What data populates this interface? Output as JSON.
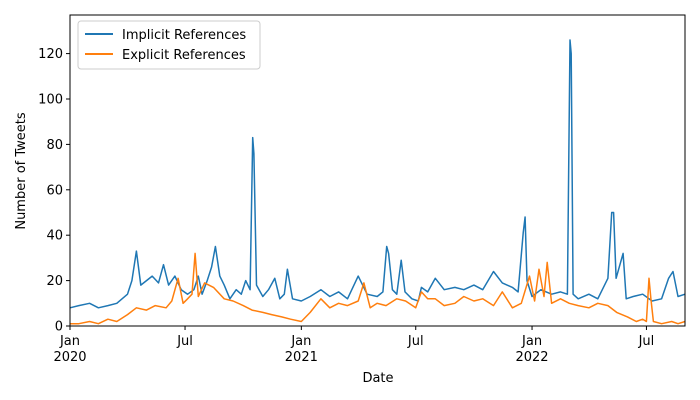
{
  "chart_data": {
    "type": "line",
    "title": "",
    "xlabel": "Date",
    "ylabel": "Number of Tweets",
    "x_range": [
      "2020-01-01",
      "2022-08-31"
    ],
    "ylim": [
      0,
      137
    ],
    "grid": false,
    "legend_position": "top-left",
    "x_ticks": [
      {
        "date": "2020-01-01",
        "label": "Jan",
        "sublabel": "2020"
      },
      {
        "date": "2020-07-01",
        "label": "Jul",
        "sublabel": ""
      },
      {
        "date": "2021-01-01",
        "label": "Jan",
        "sublabel": "2021"
      },
      {
        "date": "2021-07-01",
        "label": "Jul",
        "sublabel": ""
      },
      {
        "date": "2022-01-01",
        "label": "Jan",
        "sublabel": "2022"
      },
      {
        "date": "2022-07-01",
        "label": "Jul",
        "sublabel": ""
      }
    ],
    "y_ticks": [
      0,
      20,
      40,
      60,
      80,
      100,
      120
    ],
    "series": [
      {
        "name": "Implicit References",
        "color": "#1f77b4",
        "points": [
          [
            "2020-01-01",
            8
          ],
          [
            "2020-01-15",
            9
          ],
          [
            "2020-02-01",
            10
          ],
          [
            "2020-02-15",
            8
          ],
          [
            "2020-03-01",
            9
          ],
          [
            "2020-03-15",
            10
          ],
          [
            "2020-04-01",
            14
          ],
          [
            "2020-04-08",
            20
          ],
          [
            "2020-04-15",
            33
          ],
          [
            "2020-04-22",
            18
          ],
          [
            "2020-05-01",
            20
          ],
          [
            "2020-05-10",
            22
          ],
          [
            "2020-05-20",
            19
          ],
          [
            "2020-05-28",
            27
          ],
          [
            "2020-06-05",
            18
          ],
          [
            "2020-06-15",
            22
          ],
          [
            "2020-06-25",
            16
          ],
          [
            "2020-07-05",
            14
          ],
          [
            "2020-07-15",
            16
          ],
          [
            "2020-07-22",
            22
          ],
          [
            "2020-07-28",
            14
          ],
          [
            "2020-08-05",
            20
          ],
          [
            "2020-08-12",
            26
          ],
          [
            "2020-08-18",
            35
          ],
          [
            "2020-08-25",
            22
          ],
          [
            "2020-09-01",
            18
          ],
          [
            "2020-09-10",
            12
          ],
          [
            "2020-09-20",
            16
          ],
          [
            "2020-09-28",
            14
          ],
          [
            "2020-10-05",
            20
          ],
          [
            "2020-10-12",
            16
          ],
          [
            "2020-10-16",
            83
          ],
          [
            "2020-10-18",
            76
          ],
          [
            "2020-10-22",
            18
          ],
          [
            "2020-11-01",
            13
          ],
          [
            "2020-11-10",
            16
          ],
          [
            "2020-11-20",
            21
          ],
          [
            "2020-11-28",
            12
          ],
          [
            "2020-12-05",
            14
          ],
          [
            "2020-12-10",
            25
          ],
          [
            "2020-12-18",
            12
          ],
          [
            "2021-01-01",
            11
          ],
          [
            "2021-01-15",
            13
          ],
          [
            "2021-02-01",
            16
          ],
          [
            "2021-02-15",
            13
          ],
          [
            "2021-03-01",
            15
          ],
          [
            "2021-03-15",
            12
          ],
          [
            "2021-04-01",
            22
          ],
          [
            "2021-04-15",
            14
          ],
          [
            "2021-05-01",
            13
          ],
          [
            "2021-05-10",
            15
          ],
          [
            "2021-05-16",
            35
          ],
          [
            "2021-05-19",
            32
          ],
          [
            "2021-05-25",
            16
          ],
          [
            "2021-06-01",
            14
          ],
          [
            "2021-06-08",
            29
          ],
          [
            "2021-06-14",
            15
          ],
          [
            "2021-06-25",
            12
          ],
          [
            "2021-07-05",
            11
          ],
          [
            "2021-07-10",
            17
          ],
          [
            "2021-07-20",
            15
          ],
          [
            "2021-08-01",
            21
          ],
          [
            "2021-08-15",
            16
          ],
          [
            "2021-09-01",
            17
          ],
          [
            "2021-09-15",
            16
          ],
          [
            "2021-10-01",
            18
          ],
          [
            "2021-10-15",
            16
          ],
          [
            "2021-11-01",
            24
          ],
          [
            "2021-11-15",
            19
          ],
          [
            "2021-12-01",
            17
          ],
          [
            "2021-12-10",
            15
          ],
          [
            "2021-12-18",
            41
          ],
          [
            "2021-12-21",
            48
          ],
          [
            "2021-12-24",
            20
          ],
          [
            "2022-01-01",
            13
          ],
          [
            "2022-01-15",
            16
          ],
          [
            "2022-02-01",
            14
          ],
          [
            "2022-02-15",
            15
          ],
          [
            "2022-02-26",
            14
          ],
          [
            "2022-03-02",
            126
          ],
          [
            "2022-03-04",
            120
          ],
          [
            "2022-03-07",
            14
          ],
          [
            "2022-03-15",
            12
          ],
          [
            "2022-04-01",
            14
          ],
          [
            "2022-04-15",
            12
          ],
          [
            "2022-05-01",
            21
          ],
          [
            "2022-05-07",
            50
          ],
          [
            "2022-05-10",
            50
          ],
          [
            "2022-05-14",
            21
          ],
          [
            "2022-05-25",
            32
          ],
          [
            "2022-05-30",
            12
          ],
          [
            "2022-06-10",
            13
          ],
          [
            "2022-06-25",
            14
          ],
          [
            "2022-07-10",
            11
          ],
          [
            "2022-07-25",
            12
          ],
          [
            "2022-08-05",
            21
          ],
          [
            "2022-08-12",
            24
          ],
          [
            "2022-08-20",
            13
          ],
          [
            "2022-08-31",
            14
          ]
        ]
      },
      {
        "name": "Explicit References",
        "color": "#ff7f0e",
        "points": [
          [
            "2020-01-01",
            1
          ],
          [
            "2020-01-15",
            1
          ],
          [
            "2020-02-01",
            2
          ],
          [
            "2020-02-15",
            1
          ],
          [
            "2020-03-01",
            3
          ],
          [
            "2020-03-15",
            2
          ],
          [
            "2020-04-01",
            5
          ],
          [
            "2020-04-15",
            8
          ],
          [
            "2020-05-01",
            7
          ],
          [
            "2020-05-15",
            9
          ],
          [
            "2020-06-01",
            8
          ],
          [
            "2020-06-10",
            11
          ],
          [
            "2020-06-20",
            21
          ],
          [
            "2020-06-28",
            10
          ],
          [
            "2020-07-05",
            12
          ],
          [
            "2020-07-12",
            14
          ],
          [
            "2020-07-17",
            32
          ],
          [
            "2020-07-22",
            13
          ],
          [
            "2020-08-01",
            19
          ],
          [
            "2020-08-15",
            17
          ],
          [
            "2020-09-01",
            12
          ],
          [
            "2020-09-15",
            11
          ],
          [
            "2020-10-01",
            9
          ],
          [
            "2020-10-15",
            7
          ],
          [
            "2020-11-01",
            6
          ],
          [
            "2020-11-15",
            5
          ],
          [
            "2020-12-01",
            4
          ],
          [
            "2020-12-15",
            3
          ],
          [
            "2021-01-01",
            2
          ],
          [
            "2021-01-15",
            6
          ],
          [
            "2021-02-01",
            12
          ],
          [
            "2021-02-15",
            8
          ],
          [
            "2021-03-01",
            10
          ],
          [
            "2021-03-15",
            9
          ],
          [
            "2021-04-01",
            11
          ],
          [
            "2021-04-10",
            19
          ],
          [
            "2021-04-20",
            8
          ],
          [
            "2021-05-01",
            10
          ],
          [
            "2021-05-15",
            9
          ],
          [
            "2021-06-01",
            12
          ],
          [
            "2021-06-15",
            11
          ],
          [
            "2021-07-01",
            8
          ],
          [
            "2021-07-10",
            15
          ],
          [
            "2021-07-20",
            12
          ],
          [
            "2021-08-01",
            12
          ],
          [
            "2021-08-15",
            9
          ],
          [
            "2021-09-01",
            10
          ],
          [
            "2021-09-15",
            13
          ],
          [
            "2021-10-01",
            11
          ],
          [
            "2021-10-15",
            12
          ],
          [
            "2021-11-01",
            9
          ],
          [
            "2021-11-15",
            15
          ],
          [
            "2021-12-01",
            8
          ],
          [
            "2021-12-15",
            10
          ],
          [
            "2021-12-28",
            22
          ],
          [
            "2022-01-05",
            11
          ],
          [
            "2022-01-12",
            25
          ],
          [
            "2022-01-20",
            13
          ],
          [
            "2022-01-25",
            28
          ],
          [
            "2022-02-01",
            10
          ],
          [
            "2022-02-15",
            12
          ],
          [
            "2022-03-01",
            10
          ],
          [
            "2022-03-15",
            9
          ],
          [
            "2022-04-01",
            8
          ],
          [
            "2022-04-15",
            10
          ],
          [
            "2022-05-01",
            9
          ],
          [
            "2022-05-15",
            6
          ],
          [
            "2022-06-01",
            4
          ],
          [
            "2022-06-15",
            2
          ],
          [
            "2022-06-25",
            3
          ],
          [
            "2022-07-01",
            2
          ],
          [
            "2022-07-05",
            21
          ],
          [
            "2022-07-08",
            12
          ],
          [
            "2022-07-12",
            2
          ],
          [
            "2022-07-25",
            1
          ],
          [
            "2022-08-10",
            2
          ],
          [
            "2022-08-20",
            1
          ],
          [
            "2022-08-31",
            2
          ]
        ]
      }
    ]
  }
}
